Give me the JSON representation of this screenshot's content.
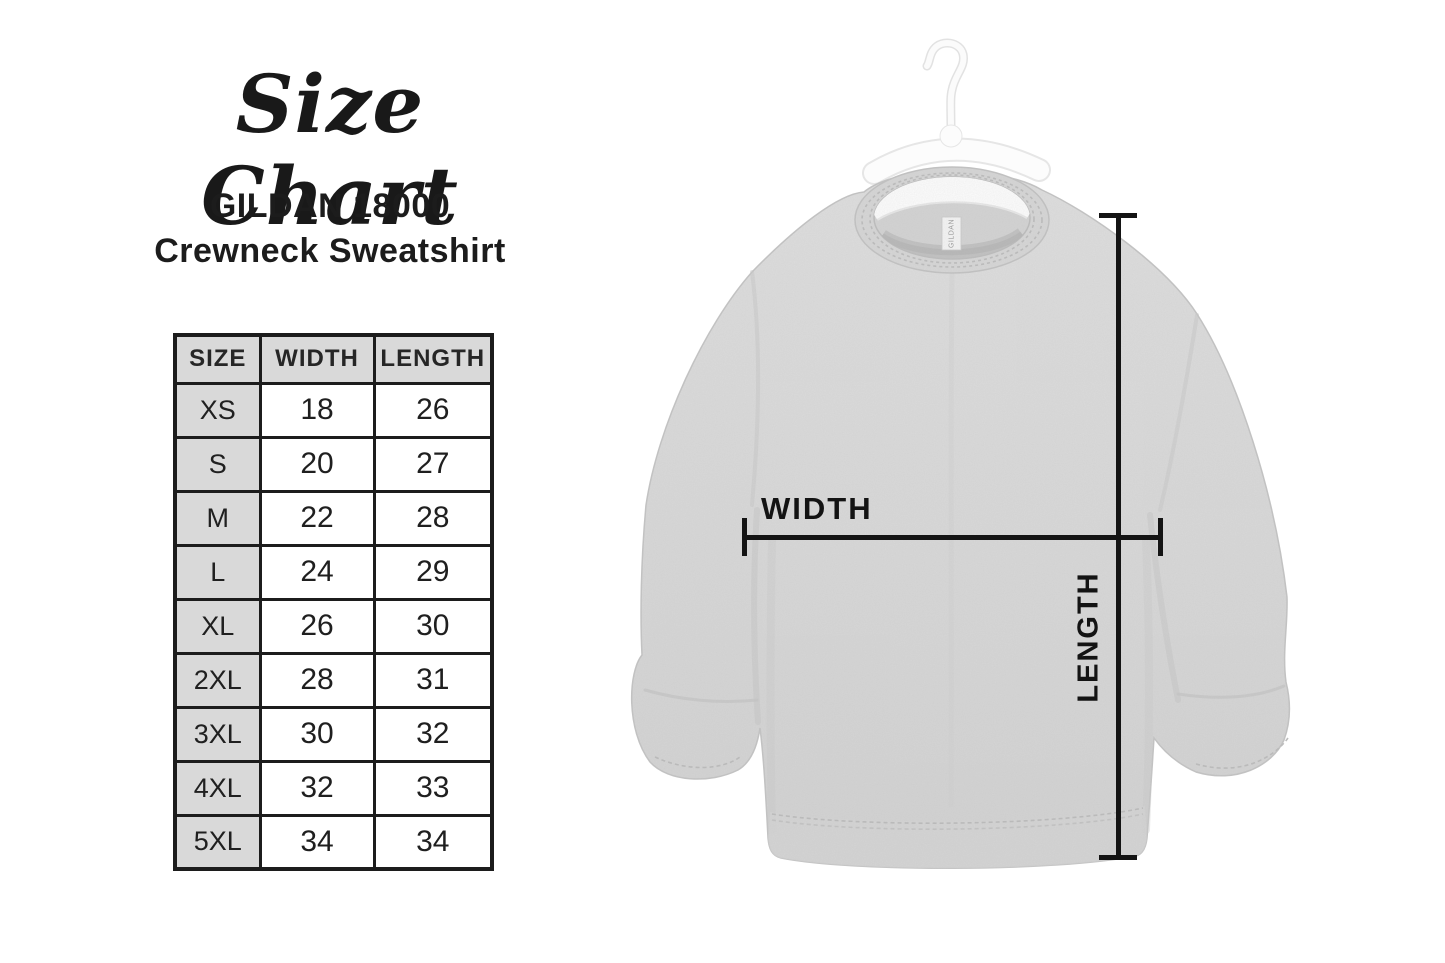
{
  "title_block": {
    "title": "Size Chart",
    "subtitle_line1": "GILDAN 18000",
    "subtitle_line2": "Crewneck Sweatshirt"
  },
  "size_table": {
    "columns": [
      "SIZE",
      "WIDTH",
      "LENGTH"
    ],
    "rows": [
      {
        "size": "XS",
        "width": "18",
        "length": "26"
      },
      {
        "size": "S",
        "width": "20",
        "length": "27"
      },
      {
        "size": "M",
        "width": "22",
        "length": "28"
      },
      {
        "size": "L",
        "width": "24",
        "length": "29"
      },
      {
        "size": "XL",
        "width": "26",
        "length": "30"
      },
      {
        "size": "2XL",
        "width": "28",
        "length": "31"
      },
      {
        "size": "3XL",
        "width": "30",
        "length": "32"
      },
      {
        "size": "4XL",
        "width": "32",
        "length": "33"
      },
      {
        "size": "5XL",
        "width": "34",
        "length": "34"
      }
    ]
  },
  "measurement_labels": {
    "width": "WIDTH",
    "length": "LENGTH"
  },
  "garment": {
    "neck_tag": "GILDAN"
  },
  "colors": {
    "ink": "#1c1c1c",
    "measure_line": "#141414",
    "table_header_bg": "#d9d9d9",
    "heather_gray": "#d8d8d8",
    "hanger_white": "#fcfcfc"
  },
  "chart_data": {
    "type": "table",
    "title": "Size Chart — GILDAN 18000 Crewneck Sweatshirt",
    "columns": [
      "SIZE",
      "WIDTH",
      "LENGTH"
    ],
    "rows": [
      [
        "XS",
        18,
        26
      ],
      [
        "S",
        20,
        27
      ],
      [
        "M",
        22,
        28
      ],
      [
        "L",
        24,
        29
      ],
      [
        "XL",
        26,
        30
      ],
      [
        "2XL",
        28,
        31
      ],
      [
        "3XL",
        30,
        32
      ],
      [
        "4XL",
        32,
        33
      ],
      [
        "5XL",
        34,
        34
      ]
    ]
  }
}
